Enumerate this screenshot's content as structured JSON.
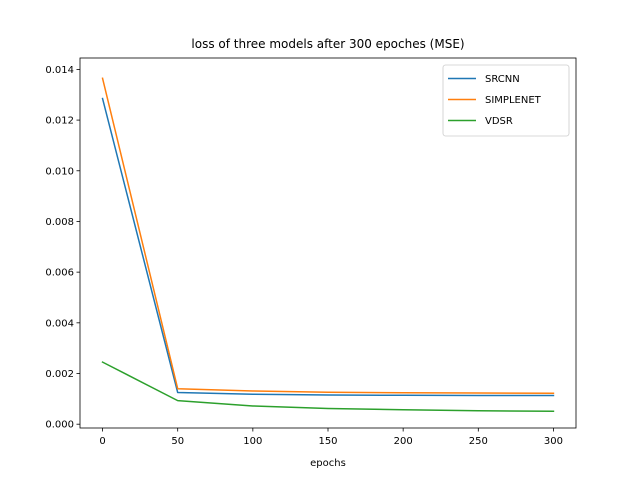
{
  "chart_data": {
    "type": "line",
    "title": "loss of three models after 300 epoches (MSE)",
    "xlabel": "epochs",
    "ylabel": "",
    "x": [
      0,
      50,
      100,
      150,
      200,
      250,
      300
    ],
    "xlim": [
      -15,
      315
    ],
    "ylim": [
      -0.00015,
      0.01445
    ],
    "xticks": [
      0,
      50,
      100,
      150,
      200,
      250,
      300
    ],
    "xtick_labels": [
      "0",
      "50",
      "100",
      "150",
      "200",
      "250",
      "300"
    ],
    "yticks": [
      0.0,
      0.002,
      0.004,
      0.006,
      0.008,
      0.01,
      0.012,
      0.014
    ],
    "ytick_labels": [
      "0.000",
      "0.002",
      "0.004",
      "0.006",
      "0.008",
      "0.010",
      "0.012",
      "0.014"
    ],
    "grid": false,
    "legend_position": "top-right",
    "series": [
      {
        "name": "SRCNN",
        "color": "#1f77b4",
        "values": [
          0.01285,
          0.00125,
          0.00118,
          0.00115,
          0.00114,
          0.00113,
          0.00113
        ]
      },
      {
        "name": "SIMPLENET",
        "color": "#ff7f0e",
        "values": [
          0.01365,
          0.0014,
          0.00131,
          0.00126,
          0.00124,
          0.00123,
          0.00122
        ]
      },
      {
        "name": "VDSR",
        "color": "#2ca02c",
        "values": [
          0.00245,
          0.00093,
          0.00072,
          0.00062,
          0.00057,
          0.00053,
          0.00051
        ]
      }
    ]
  }
}
